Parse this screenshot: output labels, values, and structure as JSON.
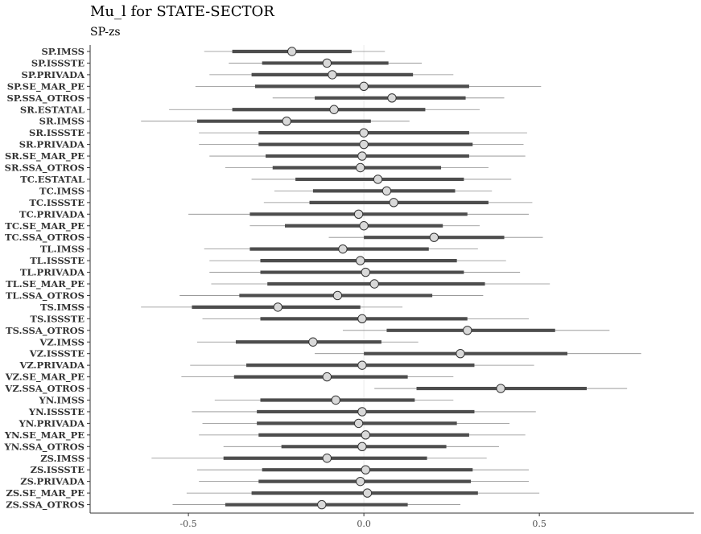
{
  "chart_data": {
    "type": "forest",
    "title": "Mu_l for STATE-SECTOR",
    "subtitle": "SP-zs",
    "xlim": [
      -0.78,
      0.94
    ],
    "xticks": [
      -0.5,
      0.0,
      0.5
    ],
    "xtick_labels": [
      "-0.5",
      "0.0",
      "0.5"
    ],
    "reference_line": 0,
    "colors": {
      "inner": "#4d4d4d",
      "outer": "#8c8c8c",
      "point_fill": "#d9d9d9",
      "point_stroke": "#333333"
    },
    "categories": [
      "SP.IMSS",
      "SP.ISSSTE",
      "SP.PRIVADA",
      "SP.SE_MAR_PE",
      "SP.SSA_OTROS",
      "SR.ESTATAL",
      "SR.IMSS",
      "SR.ISSSTE",
      "SR.PRIVADA",
      "SR.SE_MAR_PE",
      "SR.SSA_OTROS",
      "TC.ESTATAL",
      "TC.IMSS",
      "TC.ISSSTE",
      "TC.PRIVADA",
      "TC.SE_MAR_PE",
      "TC.SSA_OTROS",
      "TL.IMSS",
      "TL.ISSSTE",
      "TL.PRIVADA",
      "TL.SE_MAR_PE",
      "TL.SSA_OTROS",
      "TS.IMSS",
      "TS.ISSSTE",
      "TS.SSA_OTROS",
      "VZ.IMSS",
      "VZ.ISSSTE",
      "VZ.PRIVADA",
      "VZ.SE_MAR_PE",
      "VZ.SSA_OTROS",
      "YN.IMSS",
      "YN.ISSSTE",
      "YN.PRIVADA",
      "YN.SE_MAR_PE",
      "YN.SSA_OTROS",
      "ZS.IMSS",
      "ZS.ISSSTE",
      "ZS.PRIVADA",
      "ZS.SE_MAR_PE",
      "ZS.SSA_OTROS"
    ],
    "estimate": [
      -0.205,
      -0.105,
      -0.09,
      0.0,
      0.08,
      -0.085,
      -0.22,
      0.0,
      0.0,
      -0.005,
      -0.01,
      0.04,
      0.065,
      0.085,
      -0.015,
      0.0,
      0.2,
      -0.06,
      -0.01,
      0.005,
      0.03,
      -0.075,
      -0.245,
      -0.005,
      0.295,
      -0.145,
      0.275,
      -0.005,
      -0.105,
      0.39,
      -0.08,
      -0.005,
      -0.015,
      0.005,
      -0.005,
      -0.105,
      0.005,
      -0.01,
      0.01,
      -0.12
    ],
    "inner_low": [
      -0.375,
      -0.29,
      -0.32,
      -0.31,
      -0.14,
      -0.375,
      -0.475,
      -0.3,
      -0.3,
      -0.28,
      -0.26,
      -0.195,
      -0.145,
      -0.155,
      -0.325,
      -0.225,
      0.0,
      -0.325,
      -0.295,
      -0.295,
      -0.275,
      -0.355,
      -0.49,
      -0.295,
      0.065,
      -0.365,
      0.0,
      -0.335,
      -0.37,
      0.15,
      -0.295,
      -0.305,
      -0.305,
      -0.3,
      -0.235,
      -0.4,
      -0.29,
      -0.3,
      -0.32,
      -0.395
    ],
    "inner_high": [
      -0.035,
      0.07,
      0.14,
      0.3,
      0.29,
      0.175,
      0.02,
      0.3,
      0.31,
      0.3,
      0.22,
      0.285,
      0.26,
      0.355,
      0.295,
      0.225,
      0.4,
      0.185,
      0.265,
      0.285,
      0.345,
      0.195,
      -0.01,
      0.295,
      0.545,
      0.05,
      0.58,
      0.315,
      0.125,
      0.635,
      0.145,
      0.315,
      0.265,
      0.3,
      0.235,
      0.18,
      0.31,
      0.305,
      0.325,
      0.125
    ],
    "outer_low": [
      -0.455,
      -0.385,
      -0.44,
      -0.48,
      -0.26,
      -0.555,
      -0.635,
      -0.47,
      -0.47,
      -0.44,
      -0.395,
      -0.32,
      -0.255,
      -0.285,
      -0.5,
      -0.325,
      -0.1,
      -0.455,
      -0.44,
      -0.44,
      -0.435,
      -0.525,
      -0.635,
      -0.46,
      -0.06,
      -0.475,
      -0.14,
      -0.495,
      -0.52,
      0.03,
      -0.425,
      -0.49,
      -0.46,
      -0.47,
      -0.4,
      -0.605,
      -0.475,
      -0.47,
      -0.505,
      -0.545
    ],
    "outer_high": [
      0.06,
      0.165,
      0.255,
      0.505,
      0.4,
      0.33,
      0.13,
      0.465,
      0.455,
      0.46,
      0.355,
      0.42,
      0.365,
      0.48,
      0.47,
      0.33,
      0.51,
      0.325,
      0.405,
      0.445,
      0.53,
      0.34,
      0.11,
      0.47,
      0.7,
      0.155,
      0.79,
      0.485,
      0.255,
      0.75,
      0.255,
      0.49,
      0.415,
      0.46,
      0.385,
      0.35,
      0.47,
      0.47,
      0.5,
      0.275
    ]
  }
}
